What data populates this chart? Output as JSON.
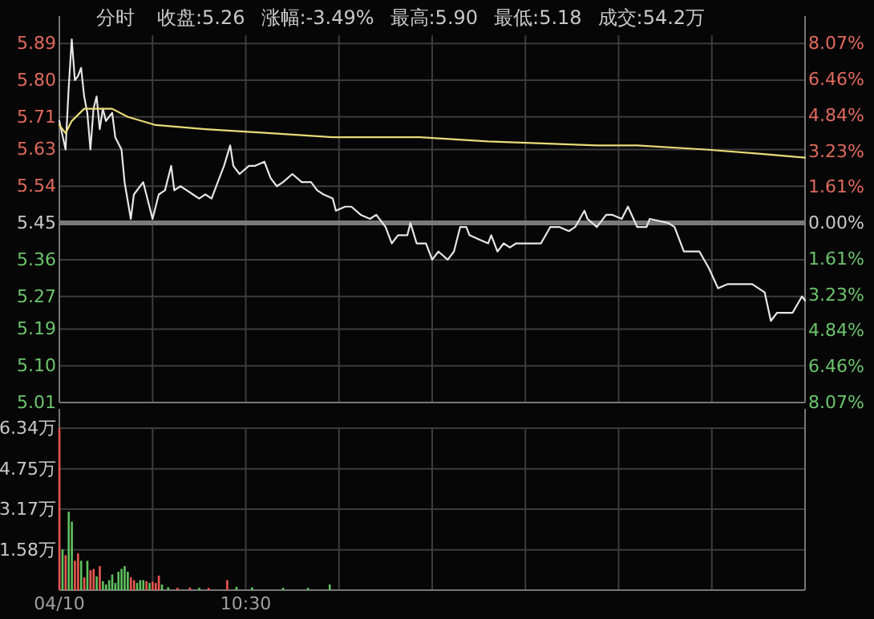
{
  "chart_data": [
    {
      "type": "line",
      "title": "分时",
      "annotations": [
        "收盘:5.26",
        "涨幅:-3.49%",
        "最高:5.90",
        "最低:5.18",
        "成交:54.2万"
      ],
      "categories": [
        null,
        null,
        null,
        null,
        null,
        null,
        null,
        null,
        null,
        null,
        null,
        null,
        null,
        null,
        null,
        null,
        null,
        null,
        null,
        null,
        null,
        null,
        null,
        null,
        null,
        null,
        null,
        null,
        null,
        null,
        null,
        null,
        null,
        null,
        null,
        null,
        null,
        null,
        null,
        null,
        null,
        null,
        null,
        null,
        null,
        null,
        null,
        null,
        null,
        null,
        null,
        null,
        null,
        null,
        null,
        null,
        null,
        null,
        null,
        null,
        null,
        null,
        null,
        null,
        null,
        null,
        null,
        null,
        null,
        null,
        null,
        null,
        null,
        null,
        null,
        null,
        null,
        null,
        null,
        null,
        null,
        null,
        null,
        null,
        null,
        null,
        null,
        null,
        null,
        null,
        null,
        null,
        null,
        null,
        null,
        null,
        null,
        null,
        null,
        null,
        null,
        null,
        null,
        null,
        null,
        null,
        null,
        null,
        null,
        null,
        null,
        null,
        null,
        null,
        null,
        null,
        null,
        null,
        null,
        null,
        null,
        null,
        null,
        null,
        null,
        null,
        null,
        null,
        null,
        null,
        null,
        null,
        null,
        null,
        null,
        null,
        null,
        null,
        null,
        null,
        null,
        null,
        null,
        null,
        null,
        null,
        null,
        null,
        null,
        null,
        null,
        null,
        null,
        null,
        null,
        null,
        null,
        null,
        null,
        null,
        null,
        null,
        null,
        null,
        null,
        null,
        null,
        null,
        null,
        null,
        null,
        null,
        null,
        null,
        null,
        null,
        null,
        null,
        null,
        null,
        null,
        null,
        null,
        null,
        null,
        null,
        null,
        null,
        null,
        null,
        null,
        null,
        null,
        null,
        null,
        null,
        null,
        null,
        null,
        null,
        null,
        null,
        null,
        null,
        null,
        null,
        null,
        null,
        null,
        null,
        null,
        null,
        null,
        null,
        null,
        null,
        null,
        null,
        null,
        null,
        null,
        null,
        null,
        null,
        null,
        null,
        null,
        null,
        null,
        null,
        null,
        null,
        null,
        null,
        null,
        null,
        null,
        null,
        null,
        null,
        null
      ],
      "series": [
        {
          "color": "#e6e6e6",
          "values": [
            5.7,
            null,
            5.63,
            5.78,
            5.9,
            5.8,
            5.81,
            5.83,
            5.76,
            5.72,
            5.63,
            5.73,
            5.76,
            5.68,
            5.73,
            5.7,
            null,
            5.72,
            5.66,
            null,
            5.63,
            5.55,
            null,
            5.46,
            5.52,
            null,
            null,
            5.55,
            5.52,
            null,
            5.46,
            null,
            5.52,
            null,
            5.53,
            null,
            5.59,
            5.53,
            null,
            5.54,
            null,
            5.53,
            null,
            5.52,
            null,
            5.51,
            null,
            5.52,
            null,
            5.51,
            null,
            5.55,
            null,
            5.59,
            null,
            5.64,
            5.59,
            null,
            5.57,
            null,
            null,
            5.59,
            null,
            5.59,
            null,
            null,
            5.6,
            null,
            5.56,
            null,
            5.54,
            null,
            5.55,
            null,
            null,
            5.57,
            null,
            null,
            5.55,
            null,
            null,
            5.55,
            null,
            5.53,
            null,
            5.52,
            null,
            null,
            5.51,
            5.48,
            null,
            null,
            5.49,
            null,
            5.49,
            null,
            null,
            5.47,
            null,
            null,
            5.46,
            null,
            5.47,
            null,
            null,
            5.44,
            null,
            5.4,
            null,
            5.42,
            null,
            null,
            5.42,
            5.45,
            null,
            5.4,
            null,
            null,
            5.4,
            null,
            5.36,
            null,
            5.38,
            null,
            null,
            5.36,
            null,
            5.38,
            null,
            5.44,
            null,
            5.44,
            5.42,
            null,
            null,
            5.41,
            null,
            null,
            5.4,
            5.42,
            null,
            5.38,
            null,
            5.4,
            null,
            5.39,
            null,
            5.4,
            null,
            null,
            null,
            null,
            null,
            null,
            null,
            5.4,
            null,
            null,
            5.44,
            null,
            null,
            5.44,
            null,
            null,
            5.43,
            null,
            5.44,
            null,
            null,
            5.48,
            5.46,
            null,
            null,
            5.44,
            null,
            null,
            5.47,
            null,
            5.47,
            null,
            null,
            5.46,
            null,
            5.49,
            null,
            null,
            5.44,
            null,
            null,
            5.44,
            5.46,
            null,
            null,
            null,
            null,
            null,
            5.45,
            null,
            5.44,
            null,
            null,
            5.38,
            null,
            null,
            null,
            null,
            5.38,
            null,
            null,
            5.34,
            null,
            null,
            5.29,
            null,
            null,
            5.3,
            null,
            null,
            null,
            null,
            null,
            5.3,
            null,
            5.3,
            null,
            null,
            null,
            5.28,
            null,
            5.21,
            null,
            5.23,
            null,
            null,
            null,
            null,
            5.23,
            null,
            null,
            5.27,
            5.26
          ]
        },
        {
          "color": "#e8dc78",
          "values": [
            5.69,
            null,
            5.67,
            null,
            5.7,
            null,
            null,
            null,
            5.73,
            null,
            null,
            null,
            5.73,
            null,
            null,
            null,
            null,
            5.73,
            null,
            null,
            null,
            null,
            5.71,
            null,
            null,
            null,
            null,
            null,
            null,
            null,
            null,
            5.69,
            null,
            null,
            null,
            null,
            null,
            null,
            null,
            null,
            null,
            null,
            null,
            null,
            null,
            null,
            null,
            5.68,
            null,
            null,
            null,
            null,
            null,
            null,
            null,
            null,
            null,
            null,
            null,
            null,
            null,
            null,
            null,
            null,
            null,
            null,
            null,
            null,
            5.67,
            null,
            null,
            null,
            null,
            null,
            null,
            null,
            null,
            null,
            null,
            null,
            null,
            null,
            null,
            null,
            null,
            null,
            null,
            null,
            5.66,
            null,
            null,
            null,
            null,
            null,
            null,
            null,
            null,
            null,
            null,
            null,
            null,
            null,
            null,
            null,
            null,
            null,
            null,
            null,
            null,
            null,
            null,
            null,
            null,
            null,
            null,
            null,
            5.66,
            null,
            null,
            null,
            null,
            null,
            null,
            null,
            null,
            null,
            null,
            null,
            null,
            null,
            null,
            null,
            null,
            null,
            null,
            null,
            null,
            null,
            5.65,
            null,
            null,
            null,
            null,
            null,
            null,
            null,
            null,
            null,
            null,
            null,
            null,
            null,
            null,
            null,
            null,
            null,
            null,
            null,
            null,
            null,
            null,
            null,
            null,
            null,
            null,
            null,
            null,
            null,
            null,
            null,
            null,
            null,
            null,
            5.64,
            null,
            null,
            null,
            null,
            null,
            null,
            null,
            null,
            null,
            null,
            null,
            null,
            5.64,
            null,
            null,
            null,
            null,
            null,
            null,
            null,
            null,
            null,
            null,
            null,
            null,
            null,
            null,
            null,
            null,
            null,
            null,
            null,
            null,
            null,
            5.63,
            null,
            null,
            null,
            null,
            null,
            null,
            null,
            null,
            null,
            null,
            null,
            null,
            null,
            null,
            null,
            null,
            5.62,
            null,
            null,
            null,
            null,
            null,
            null,
            null,
            null,
            null,
            null,
            null,
            null,
            null,
            null,
            5.61
          ]
        }
      ],
      "ylim": [
        5.01,
        5.91
      ],
      "yticks": [
        5.01,
        {
          "value": 5.1,
          "label": "5.10"
        },
        5.19,
        5.27,
        5.36,
        5.45,
        5.54,
        5.63,
        5.71,
        {
          "value": 5.8,
          "label": "5.80"
        },
        5.89
      ],
      "y2lim": [
        -8.07,
        8.44
      ],
      "y2ticks": [
        {
          "value": -8.07,
          "label": "8.07%"
        },
        {
          "value": -6.46,
          "label": "6.46%"
        },
        {
          "value": -4.84,
          "label": "4.84%"
        },
        {
          "value": -3.23,
          "label": "3.23%"
        },
        {
          "value": -1.61,
          "label": "1.61%"
        },
        {
          "value": 0,
          "label": "0.00%"
        },
        {
          "value": 1.61,
          "label": "1.61%"
        },
        {
          "value": 3.23,
          "label": "3.23%"
        },
        {
          "value": 4.84,
          "label": "4.84%"
        },
        {
          "value": 6.46,
          "label": "6.46%"
        },
        {
          "value": 8.07,
          "label": "8.07%"
        }
      ],
      "ref_lines": [
        {
          "axis": "y",
          "value": 5.45,
          "color": "#7a7a7a"
        }
      ],
      "grid": true,
      "tick_labels": "y"
    },
    {
      "type": "bar",
      "categories": [
        "04/10",
        null,
        null,
        null,
        null,
        null,
        null,
        null,
        null,
        null,
        null,
        null,
        null,
        null,
        null,
        null,
        null,
        null,
        null,
        null,
        null,
        null,
        null,
        null,
        null,
        null,
        null,
        null,
        null,
        null,
        null,
        null,
        null,
        null,
        null,
        null,
        null,
        null,
        null,
        null,
        null,
        null,
        null,
        null,
        null,
        null,
        null,
        null,
        null,
        null,
        null,
        null,
        null,
        null,
        null,
        null,
        null,
        null,
        null,
        null,
        "10:30",
        null,
        null,
        null,
        null,
        null,
        null,
        null,
        null,
        null,
        null,
        null,
        null,
        null,
        null,
        null,
        null,
        null,
        null,
        null,
        null,
        null,
        null,
        null,
        null,
        null,
        null,
        null,
        null,
        null,
        null,
        null,
        null,
        null,
        null,
        null,
        null,
        null,
        null,
        null,
        null,
        null,
        null,
        null,
        null,
        null,
        null,
        null,
        null,
        null,
        null,
        null,
        null,
        null,
        null,
        null,
        null,
        null,
        null,
        null,
        null,
        null,
        null,
        null,
        null,
        null,
        null,
        null,
        null,
        null,
        null,
        null,
        null,
        null,
        null,
        null,
        null,
        null,
        null,
        null,
        null,
        null,
        null,
        null,
        null,
        null,
        null,
        null,
        null,
        null,
        null,
        null,
        null,
        null,
        null,
        null,
        null,
        null,
        null,
        null,
        null,
        null,
        null,
        null,
        null,
        null,
        null,
        null,
        null,
        null,
        null,
        null,
        null,
        null,
        null,
        null,
        null,
        null,
        null,
        null,
        null,
        null,
        null,
        null,
        null,
        null,
        null,
        null,
        null,
        null,
        null,
        null,
        null,
        null,
        null,
        null,
        null,
        null,
        null,
        null,
        null,
        null,
        null,
        null,
        null,
        null,
        null,
        null,
        null,
        null,
        null,
        null,
        null,
        null,
        null,
        null,
        null,
        null,
        null,
        null,
        null,
        null,
        null,
        null,
        null,
        null,
        null,
        null,
        null,
        null,
        null,
        null,
        null,
        null,
        null,
        null,
        null,
        null,
        null,
        null,
        null
      ],
      "values": [
        6.34,
        1.59,
        1.37,
        3.07,
        2.68,
        1.15,
        1.44,
        1.15,
        0.5,
        1.15,
        0.78,
        0.83,
        0.54,
        0.94,
        0.35,
        0.22,
        0.39,
        0.61,
        0.28,
        0.72,
        0.83,
        0.94,
        0.72,
        0.5,
        0.39,
        0.28,
        0.39,
        0.39,
        0.35,
        0.28,
        0.33,
        0.28,
        0.57,
        0.22,
        null,
        0.11,
        null,
        null,
        0.09,
        null,
        null,
        null,
        0.1,
        null,
        null,
        0.09,
        null,
        null,
        0.09,
        null,
        null,
        null,
        null,
        null,
        0.39,
        null,
        null,
        0.13,
        null,
        null,
        null,
        null,
        0.11,
        null,
        null,
        null,
        null,
        null,
        null,
        null,
        null,
        null,
        0.09,
        null,
        null,
        null,
        null,
        null,
        null,
        null,
        0.09,
        null,
        null,
        null,
        null,
        null,
        null,
        0.22,
        null,
        null,
        null,
        null,
        null,
        null,
        null,
        null,
        null,
        null,
        null,
        null,
        null,
        null,
        null,
        null,
        null,
        null,
        null,
        null,
        null,
        null,
        null,
        null,
        null,
        null,
        null,
        null,
        null,
        null,
        null,
        null,
        null,
        null,
        null,
        null,
        null,
        null,
        null,
        null,
        null,
        null,
        null,
        null,
        null,
        null,
        null,
        null,
        null,
        null,
        null,
        null,
        null,
        null,
        null,
        null,
        null,
        null,
        null,
        null,
        null,
        null,
        null,
        null,
        null,
        null,
        null,
        null,
        null,
        null,
        null,
        null,
        null,
        null,
        null,
        null,
        null,
        null,
        null,
        null,
        null,
        null,
        null,
        null,
        null,
        null,
        null,
        null,
        null,
        null,
        null,
        null,
        null,
        null,
        null,
        null,
        null,
        null,
        null,
        null,
        null,
        null,
        null,
        null,
        null,
        null,
        null,
        null,
        null,
        null,
        null,
        null,
        null,
        null,
        null,
        null,
        null,
        null,
        null,
        null,
        null,
        null,
        null,
        null,
        null,
        null,
        null,
        null,
        null,
        null,
        null,
        null,
        null,
        null,
        null,
        null,
        null,
        null,
        null,
        null,
        null,
        null,
        null,
        null,
        null,
        null,
        null,
        null,
        null,
        null,
        null,
        null,
        null
      ],
      "colors": [
        "#e8574f",
        "#5fc25f",
        "#e8574f",
        "#5fc25f",
        "#5fc25f",
        "#e8574f",
        "#e8574f",
        "#5fc25f",
        "#e8574f",
        "#5fc25f",
        "#e8574f",
        "#e8574f",
        "#5fc25f",
        "#e8574f",
        "#5fc25f",
        "#5fc25f",
        "#5fc25f",
        "#5fc25f",
        "#5fc25f",
        "#5fc25f",
        "#5fc25f",
        "#5fc25f",
        "#5fc25f",
        "#e8574f",
        "#e8574f",
        "#5fc25f",
        "#5fc25f",
        "#5fc25f",
        "#e8574f",
        "#5fc25f",
        "#e8574f",
        "#e8574f",
        "#e8574f",
        "#5fc25f",
        null,
        "#5fc25f",
        null,
        null,
        "#e8574f",
        null,
        null,
        null,
        "#e8574f",
        null,
        null,
        "#5fc25f",
        null,
        null,
        "#e8574f",
        null,
        null,
        null,
        null,
        null,
        "#e8574f",
        null,
        null,
        "#5fc25f",
        null,
        null,
        null,
        null,
        "#5fc25f",
        null,
        null,
        null,
        null,
        null,
        null,
        null,
        null,
        null,
        "#5fc25f",
        null,
        null,
        null,
        null,
        null,
        null,
        null,
        "#5fc25f",
        null,
        null,
        null,
        null,
        null,
        null,
        "#5fc25f",
        null,
        null,
        null,
        null,
        null,
        null,
        null,
        null,
        null,
        null,
        null,
        null,
        null,
        null,
        null,
        null,
        null,
        null,
        null,
        null,
        null,
        null,
        null,
        null,
        null,
        null,
        null,
        null,
        null,
        null,
        null,
        null,
        null,
        null,
        null,
        null,
        null,
        null,
        null,
        null,
        null,
        null,
        null,
        null,
        null,
        null,
        null,
        null,
        null,
        null,
        null,
        null,
        null,
        null,
        null,
        null,
        null,
        null,
        null,
        null,
        null,
        null,
        null,
        null,
        null,
        null,
        null,
        null,
        null,
        null,
        null,
        null,
        null,
        null,
        null,
        null,
        null,
        null,
        null,
        null,
        null,
        null,
        null,
        null,
        null,
        null,
        null,
        null,
        null,
        null,
        null,
        null,
        null,
        null,
        null,
        null,
        null,
        null,
        null,
        null,
        null,
        null,
        null,
        null,
        null,
        null,
        null,
        null,
        null,
        null,
        null,
        null,
        null,
        null,
        null,
        null,
        null,
        null,
        null,
        null,
        null,
        null,
        null,
        null,
        null,
        null,
        null,
        null,
        null,
        null,
        null,
        null,
        null,
        null,
        null,
        null,
        null,
        null,
        null,
        null,
        null,
        null,
        null,
        null,
        null,
        null,
        null,
        null,
        null,
        null,
        null,
        null,
        null
      ],
      "ylim": [
        0,
        6.34
      ],
      "yticks": [
        {
          "value": 1.58,
          "label": "1.58万"
        },
        {
          "value": 3.17,
          "label": "3.17万"
        },
        {
          "value": 4.75,
          "label": "4.75万"
        },
        {
          "value": 6.34,
          "label": "6.34万"
        }
      ],
      "grid": true
    }
  ]
}
